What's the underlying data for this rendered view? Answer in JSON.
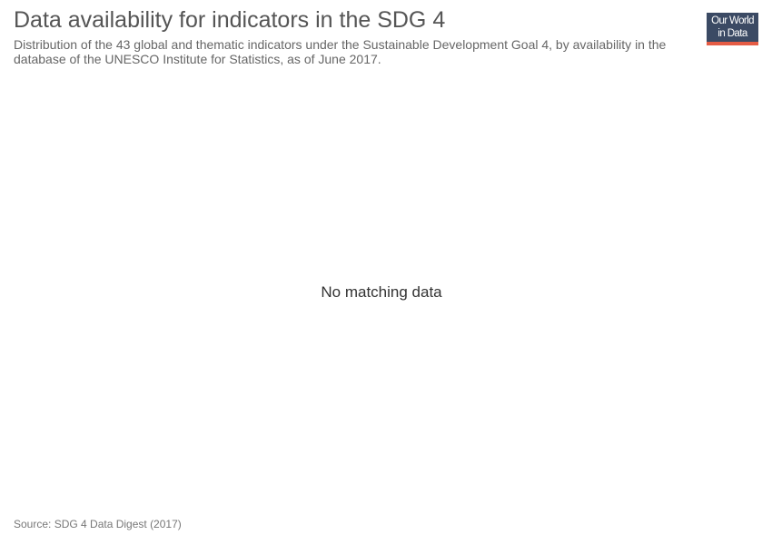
{
  "header": {
    "title": "Data availability for indicators in the SDG 4",
    "subtitle": "Distribution of the 43 global and thematic indicators under the Sustainable Development Goal 4, by availability in the database of the UNESCO Institute for Statistics, as of June 2017."
  },
  "logo": {
    "line1": "Our World",
    "line2": "in Data",
    "background_color": "#3b4a64",
    "accent_color": "#e55c45"
  },
  "chart_data": {
    "type": "bar",
    "title": "Data availability for indicators in the SDG 4",
    "subtitle": "Distribution of the 43 global and thematic indicators under the Sustainable Development Goal 4, by availability in the database of the UNESCO Institute for Statistics, as of June 2017.",
    "categories": [],
    "series": [],
    "message": "No matching data",
    "source": "Source: SDG 4 Data Digest (2017)"
  },
  "footer": {
    "source": "Source: SDG 4 Data Digest (2017)"
  }
}
